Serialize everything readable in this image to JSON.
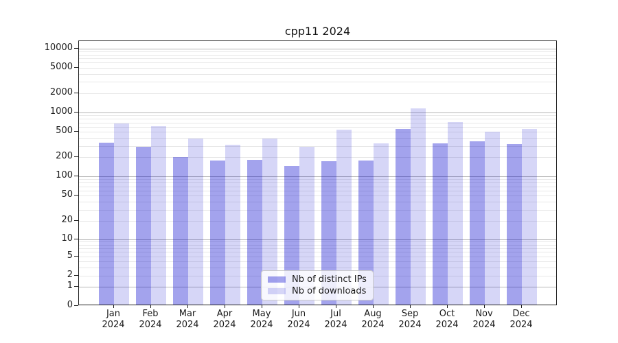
{
  "chart": {
    "title": "cpp11 2024"
  },
  "chart_data": {
    "type": "bar",
    "title": "cpp11 2024",
    "x_months": [
      "Jan",
      "Feb",
      "Mar",
      "Apr",
      "May",
      "Jun",
      "Jul",
      "Aug",
      "Sep",
      "Oct",
      "Nov",
      "Dec"
    ],
    "x_year": "2024",
    "categories": [
      "Jan 2024",
      "Feb 2024",
      "Mar 2024",
      "Apr 2024",
      "May 2024",
      "Jun 2024",
      "Jul 2024",
      "Aug 2024",
      "Sep 2024",
      "Oct 2024",
      "Nov 2024",
      "Dec 2024"
    ],
    "series": [
      {
        "name": "Nb of distinct IPs",
        "color": "rgba(0,0,205,0.36)",
        "values": [
          320,
          280,
          192,
          168,
          172,
          140,
          165,
          170,
          530,
          315,
          335,
          310
        ]
      },
      {
        "name": "Nb of downloads",
        "color": "rgba(0,0,205,0.16)",
        "values": [
          640,
          590,
          370,
          300,
          370,
          275,
          520,
          315,
          1110,
          680,
          480,
          530
        ]
      }
    ],
    "y_scale": "symlog",
    "y_ticks": [
      10000,
      5000,
      2000,
      1000,
      500,
      200,
      100,
      50,
      20,
      10,
      5,
      2,
      1,
      0
    ],
    "ylim": [
      0,
      13000
    ],
    "grid": "both",
    "legend_position": "lower center",
    "colors": {
      "major_grid": "#b4b4b4",
      "minor_grid": "#e7e7e7",
      "spine": "#1c1c1c"
    }
  }
}
